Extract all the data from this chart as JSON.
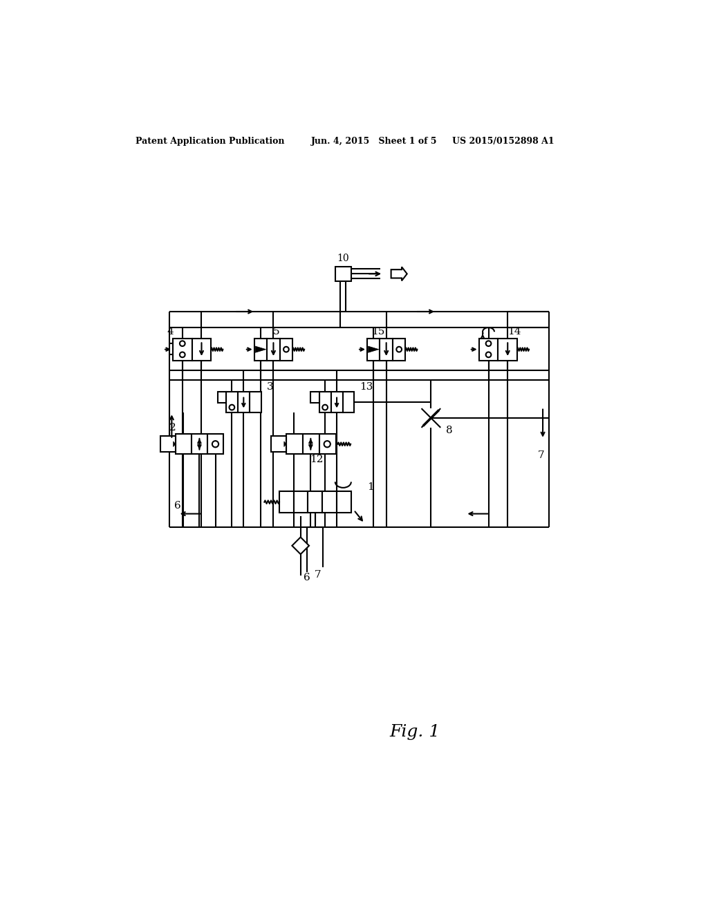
{
  "bg_color": "#ffffff",
  "header_left": "Patent Application Publication",
  "header_center": "Jun. 4, 2015   Sheet 1 of 5",
  "header_right": "US 2015/0152898 A1",
  "fig_label": "Fig. 1"
}
